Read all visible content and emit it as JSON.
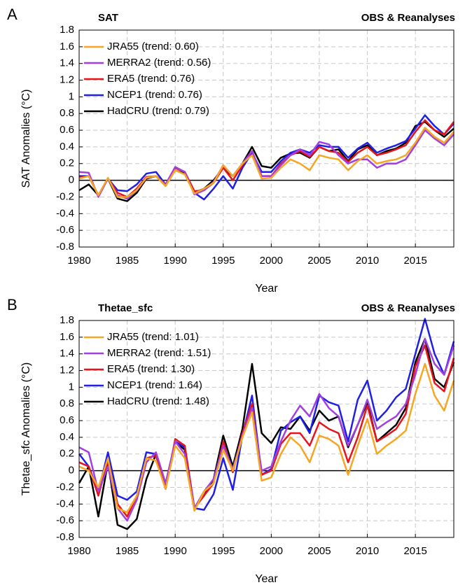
{
  "chart_data": [
    {
      "type": "line",
      "panel_label": "A",
      "title": "SAT",
      "subtitle": "OBS & Reanalyses",
      "x_label": "Year",
      "y_label": "SAT Anomalies (°C)",
      "x": [
        1980,
        1981,
        1982,
        1983,
        1984,
        1985,
        1986,
        1987,
        1988,
        1989,
        1990,
        1991,
        1992,
        1993,
        1994,
        1995,
        1996,
        1997,
        1998,
        1999,
        2000,
        2001,
        2002,
        2003,
        2004,
        2005,
        2006,
        2007,
        2008,
        2009,
        2010,
        2011,
        2012,
        2013,
        2014,
        2015,
        2016,
        2017,
        2018,
        2019
      ],
      "xlim": [
        1980,
        2019
      ],
      "xticks": [
        1980,
        1985,
        1990,
        1995,
        2000,
        2005,
        2010,
        2015
      ],
      "ylim": [
        -0.8,
        1.8
      ],
      "yticks": [
        1.8,
        1.6,
        1.4,
        1.2,
        1,
        0.8,
        0.6,
        0.4,
        0.2,
        0,
        -0.2,
        -0.4,
        -0.6,
        -0.8
      ],
      "grid": true,
      "legend": "upper left",
      "series": [
        {
          "name": "JRA55 (trend: 0.60)",
          "color": "#f5a623",
          "values": [
            0.02,
            0.05,
            -0.18,
            0.03,
            -0.2,
            -0.2,
            -0.12,
            0.03,
            0.05,
            -0.07,
            0.12,
            0.07,
            -0.16,
            -0.1,
            -0.03,
            0.18,
            0.05,
            0.2,
            0.3,
            0.02,
            0.03,
            0.15,
            0.25,
            0.2,
            0.12,
            0.3,
            0.27,
            0.25,
            0.12,
            0.23,
            0.3,
            0.2,
            0.23,
            0.25,
            0.3,
            0.45,
            0.63,
            0.52,
            0.45,
            0.58
          ]
        },
        {
          "name": "MERRA2 (trend: 0.56)",
          "color": "#a23fe0",
          "values": [
            0.1,
            0.09,
            -0.2,
            0.02,
            -0.18,
            -0.22,
            -0.12,
            0.03,
            0.05,
            -0.05,
            0.16,
            0.1,
            -0.17,
            -0.12,
            -0.02,
            0.18,
            0.05,
            0.2,
            0.35,
            0.05,
            0.05,
            0.18,
            0.3,
            0.37,
            0.3,
            0.46,
            0.43,
            0.3,
            0.2,
            0.25,
            0.25,
            0.15,
            0.2,
            0.2,
            0.25,
            0.42,
            0.6,
            0.5,
            0.42,
            0.55
          ]
        },
        {
          "name": "ERA5 (trend: 0.76)",
          "color": "#e8141b",
          "values": [
            0.03,
            0.05,
            -0.18,
            0.02,
            -0.15,
            -0.2,
            -0.1,
            0.04,
            0.05,
            -0.05,
            0.15,
            0.1,
            -0.13,
            -0.12,
            -0.03,
            0.15,
            0.0,
            0.18,
            0.35,
            0.05,
            0.05,
            0.2,
            0.3,
            0.35,
            0.28,
            0.4,
            0.35,
            0.33,
            0.22,
            0.33,
            0.4,
            0.3,
            0.33,
            0.37,
            0.42,
            0.58,
            0.72,
            0.6,
            0.55,
            0.7
          ]
        },
        {
          "name": "NCEP1 (trend: 0.76)",
          "color": "#1f1fe8",
          "values": [
            0.05,
            0.05,
            -0.18,
            0.02,
            -0.12,
            -0.13,
            -0.05,
            0.08,
            0.1,
            -0.05,
            0.15,
            0.1,
            -0.15,
            -0.23,
            -0.1,
            0.05,
            -0.1,
            0.15,
            0.33,
            0.1,
            0.1,
            0.23,
            0.33,
            0.37,
            0.33,
            0.42,
            0.4,
            0.4,
            0.27,
            0.38,
            0.45,
            0.33,
            0.38,
            0.42,
            0.47,
            0.62,
            0.78,
            0.65,
            0.55,
            0.68
          ]
        },
        {
          "name": "HadCRU (trend: 0.79)",
          "color": "#000000",
          "values": [
            -0.12,
            -0.05,
            -0.18,
            0.02,
            -0.22,
            -0.25,
            -0.15,
            0.02,
            0.05,
            -0.05,
            0.12,
            0.08,
            -0.15,
            -0.1,
            0.0,
            0.15,
            0.05,
            0.2,
            0.4,
            0.17,
            0.15,
            0.27,
            0.32,
            0.33,
            0.27,
            0.4,
            0.35,
            0.37,
            0.23,
            0.37,
            0.42,
            0.3,
            0.35,
            0.38,
            0.45,
            0.65,
            0.7,
            0.6,
            0.52,
            0.62
          ]
        }
      ]
    },
    {
      "type": "line",
      "panel_label": "B",
      "title": "Thetae_sfc",
      "subtitle": "OBS & Reanalyses",
      "x_label": "Year",
      "y_label": "Thetae_sfc Anomalies (°C)",
      "x": [
        1980,
        1981,
        1982,
        1983,
        1984,
        1985,
        1986,
        1987,
        1988,
        1989,
        1990,
        1991,
        1992,
        1993,
        1994,
        1995,
        1996,
        1997,
        1998,
        1999,
        2000,
        2001,
        2002,
        2003,
        2004,
        2005,
        2006,
        2007,
        2008,
        2009,
        2010,
        2011,
        2012,
        2013,
        2014,
        2015,
        2016,
        2017,
        2018,
        2019
      ],
      "xlim": [
        1980,
        2019
      ],
      "xticks": [
        1980,
        1985,
        1990,
        1995,
        2000,
        2005,
        2010,
        2015
      ],
      "ylim": [
        -0.8,
        1.8
      ],
      "yticks": [
        1.8,
        1.6,
        1.4,
        1.2,
        1,
        0.8,
        0.6,
        0.4,
        0.2,
        0,
        -0.2,
        -0.4,
        -0.6,
        -0.8
      ],
      "grid": true,
      "legend": "upper left",
      "series": [
        {
          "name": "JRA55 (trend: 1.01)",
          "color": "#f5a623",
          "values": [
            0.05,
            0.0,
            -0.2,
            0.15,
            -0.45,
            -0.5,
            -0.3,
            0.15,
            0.12,
            -0.22,
            0.3,
            0.15,
            -0.48,
            -0.25,
            -0.15,
            0.25,
            0.0,
            0.4,
            0.7,
            -0.12,
            -0.08,
            0.2,
            0.4,
            0.3,
            0.1,
            0.42,
            0.38,
            0.3,
            -0.05,
            0.3,
            0.62,
            0.2,
            0.3,
            0.38,
            0.48,
            0.92,
            1.28,
            0.9,
            0.72,
            1.08
          ]
        },
        {
          "name": "MERRA2 (trend: 1.51)",
          "color": "#a23fe0",
          "values": [
            0.28,
            0.22,
            -0.25,
            0.05,
            -0.45,
            -0.6,
            -0.35,
            0.1,
            0.22,
            -0.15,
            0.35,
            0.2,
            -0.45,
            -0.25,
            -0.1,
            0.3,
            0.02,
            0.42,
            0.75,
            0.0,
            0.05,
            0.35,
            0.6,
            0.78,
            0.65,
            0.92,
            0.75,
            0.65,
            0.3,
            0.55,
            0.85,
            0.5,
            0.58,
            0.65,
            0.8,
            1.15,
            1.58,
            1.28,
            1.15,
            1.5
          ]
        },
        {
          "name": "ERA5 (trend: 1.30)",
          "color": "#e8141b",
          "values": [
            0.1,
            0.05,
            -0.3,
            0.12,
            -0.4,
            -0.55,
            -0.3,
            0.15,
            0.18,
            -0.22,
            0.38,
            0.3,
            -0.45,
            -0.3,
            -0.15,
            0.35,
            -0.02,
            0.45,
            0.8,
            -0.05,
            0.0,
            0.32,
            0.45,
            0.45,
            0.3,
            0.58,
            0.5,
            0.45,
            0.1,
            0.4,
            0.78,
            0.35,
            0.42,
            0.5,
            0.68,
            1.25,
            1.5,
            1.05,
            0.95,
            1.35
          ]
        },
        {
          "name": "NCEP1 (trend: 1.64)",
          "color": "#1f1fe8",
          "values": [
            0.2,
            0.05,
            -0.25,
            0.22,
            -0.3,
            -0.35,
            -0.25,
            0.22,
            0.2,
            -0.2,
            0.35,
            0.28,
            -0.45,
            -0.47,
            -0.28,
            0.15,
            -0.23,
            0.42,
            0.9,
            -0.05,
            0.02,
            0.48,
            0.58,
            0.65,
            0.45,
            0.9,
            0.82,
            0.78,
            0.35,
            0.85,
            1.08,
            0.6,
            0.72,
            0.88,
            0.98,
            1.4,
            1.82,
            1.4,
            1.15,
            1.55
          ]
        },
        {
          "name": "HadCRU (trend: 1.48)",
          "color": "#000000",
          "values": [
            -0.15,
            0.05,
            -0.55,
            0.1,
            -0.65,
            -0.7,
            -0.58,
            -0.1,
            0.2,
            -0.2,
            0.35,
            0.25,
            -0.45,
            -0.3,
            -0.1,
            0.42,
            0.05,
            0.5,
            1.28,
            0.45,
            0.33,
            0.52,
            0.5,
            0.65,
            0.48,
            0.72,
            0.6,
            0.65,
            0.28,
            0.55,
            0.82,
            0.35,
            0.45,
            0.55,
            0.75,
            1.3,
            1.58,
            1.1,
            1.0,
            1.3
          ]
        }
      ]
    }
  ]
}
